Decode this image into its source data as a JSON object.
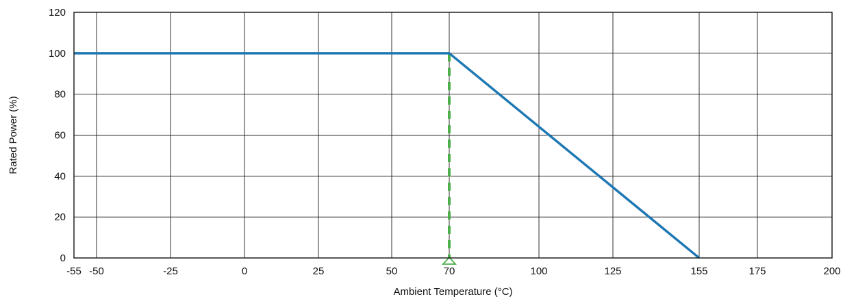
{
  "chart_data": {
    "type": "line",
    "title": "",
    "xlabel": "Ambient Temperature (°C)",
    "ylabel": "Rated Power (%)",
    "xlim": [
      -55,
      200
    ],
    "ylim": [
      0,
      120
    ],
    "x_ticks": [
      -55,
      -50,
      -25,
      0,
      25,
      50,
      70,
      100,
      125,
      155,
      175,
      200
    ],
    "x_tick_labels": [
      "-55",
      "-50",
      "-25",
      "0",
      "25",
      "50",
      "70",
      "100",
      "125",
      "155",
      "175",
      "200"
    ],
    "y_ticks": [
      0,
      20,
      40,
      60,
      80,
      100,
      120
    ],
    "y_tick_labels": [
      "0",
      "20",
      "40",
      "60",
      "80",
      "100",
      "120"
    ],
    "grid": true,
    "series": [
      {
        "x": [
          -55,
          70,
          155
        ],
        "y": [
          100,
          100,
          0
        ],
        "color": "#1f78b4"
      }
    ],
    "annotations": [
      {
        "type": "vertical-dashed-line",
        "x": 70,
        "y_from": 0,
        "y_to": 100,
        "color": "#4daf4a",
        "marker": "triangle-up-outline"
      }
    ]
  }
}
